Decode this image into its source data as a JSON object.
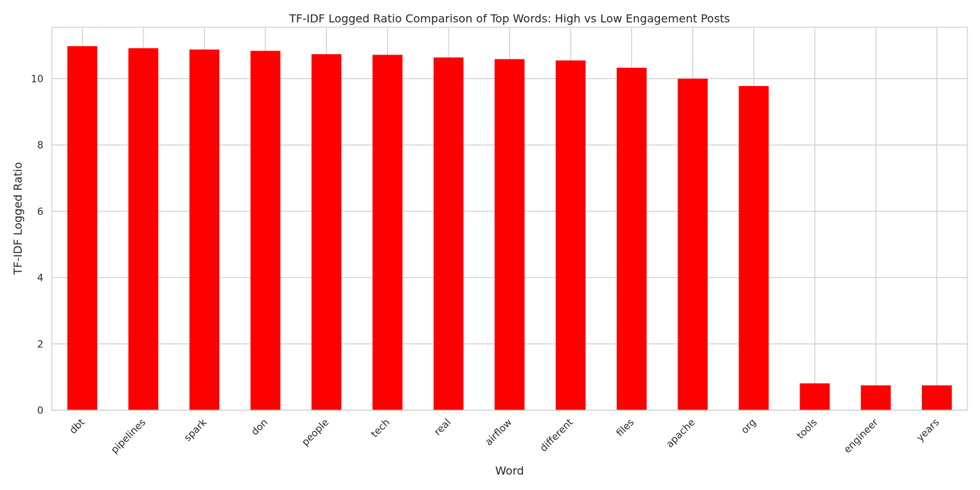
{
  "chart_data": {
    "type": "bar",
    "title": "TF-IDF Logged Ratio Comparison of Top Words: High vs Low Engagement Posts",
    "xlabel": "Word",
    "ylabel": "TF-IDF Logged Ratio",
    "categories": [
      "dbt",
      "pipelines",
      "spark",
      "don",
      "people",
      "tech",
      "real",
      "airflow",
      "different",
      "files",
      "apache",
      "org",
      "tools",
      "engineer",
      "years"
    ],
    "values": [
      10.98,
      10.92,
      10.88,
      10.84,
      10.74,
      10.72,
      10.64,
      10.59,
      10.55,
      10.33,
      10.0,
      9.78,
      0.81,
      0.75,
      0.75
    ],
    "ylim": [
      0,
      11.55
    ],
    "yticks": [
      0,
      2,
      4,
      6,
      8,
      10
    ],
    "grid": true,
    "bar_color": "#ff0000",
    "grid_color": "#cccccc"
  }
}
